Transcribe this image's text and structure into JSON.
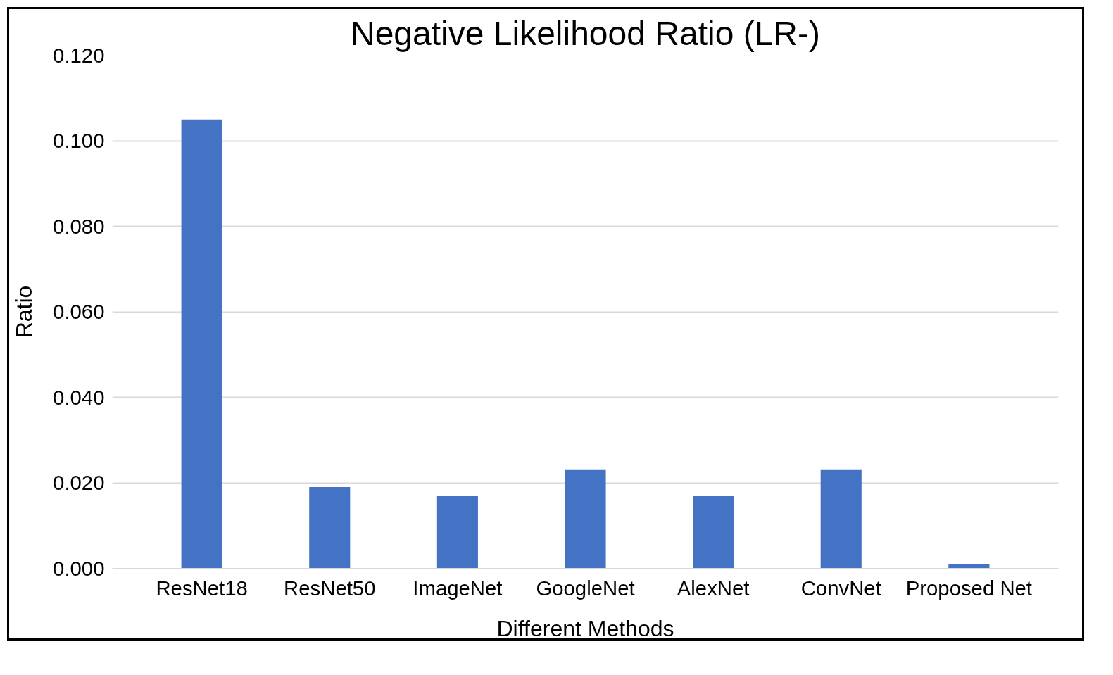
{
  "chart_data": {
    "type": "bar",
    "title": "Negative Likelihood Ratio (LR-)",
    "xlabel": "Different Methods",
    "ylabel": "Ratio",
    "categories": [
      "ResNet18",
      "ResNet50",
      "ImageNet",
      "GoogleNet",
      "AlexNet",
      "ConvNet",
      "Proposed Net"
    ],
    "values": [
      0.105,
      0.019,
      0.017,
      0.023,
      0.017,
      0.023,
      0.001
    ],
    "color": "#4472c4",
    "ylim": [
      0,
      0.12
    ],
    "yticks": [
      {
        "value": 0,
        "label": "0.000"
      },
      {
        "value": 0.02,
        "label": "0.020"
      },
      {
        "value": 0.04,
        "label": "0.040"
      },
      {
        "value": 0.06,
        "label": "0.060"
      },
      {
        "value": 0.08,
        "label": "0.080"
      },
      {
        "value": 0.1,
        "label": "0.100"
      },
      {
        "value": 0.12,
        "label": "0.120"
      }
    ],
    "grid": "y"
  }
}
